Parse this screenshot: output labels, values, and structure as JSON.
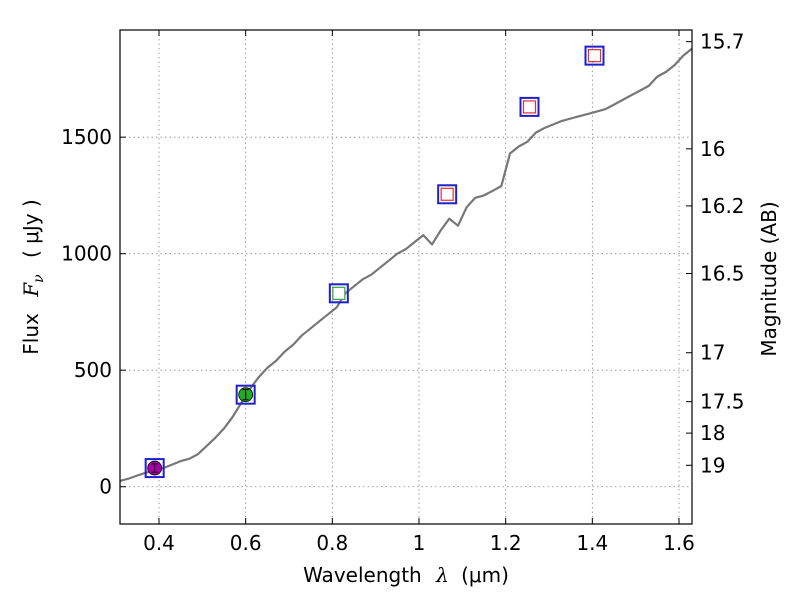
{
  "chart_data": {
    "type": "line",
    "title": "",
    "xlabel_text": "Wavelength",
    "xlabel_symbol": "λ",
    "xlabel_unit": "(μm)",
    "ylabel_text": "Flux",
    "ylabel_symbol": "F",
    "ylabel_subscript": "ν",
    "ylabel_unit": "( μJy )",
    "y2label": "Magnitude (AB)",
    "xlim": [
      0.31,
      1.63
    ],
    "ylim": [
      -160,
      1960
    ],
    "grid": true,
    "x_ticks": [
      0.4,
      0.6,
      0.8,
      1.0,
      1.2,
      1.4,
      1.6
    ],
    "x_tick_labels": [
      "0.4",
      "0.6",
      "0.8",
      "1",
      "1.2",
      "1.4",
      "1.6"
    ],
    "y_ticks": [
      0,
      500,
      1000,
      1500
    ],
    "y_tick_labels": [
      "0",
      "500",
      "1000",
      "1500"
    ],
    "magnitude_ticks": [
      {
        "label": "15.7",
        "flux": 1910
      },
      {
        "label": "16",
        "flux": 1450
      },
      {
        "label": "16.2",
        "flux": 1205
      },
      {
        "label": "16.5",
        "flux": 915
      },
      {
        "label": "17",
        "flux": 575
      },
      {
        "label": "17.5",
        "flux": 365
      },
      {
        "label": "18",
        "flux": 230
      },
      {
        "label": "19",
        "flux": 92
      }
    ],
    "series": [
      {
        "name": "spectrum",
        "color": "#777777",
        "x": [
          0.31,
          0.33,
          0.35,
          0.37,
          0.39,
          0.41,
          0.43,
          0.45,
          0.47,
          0.49,
          0.51,
          0.53,
          0.55,
          0.57,
          0.59,
          0.61,
          0.63,
          0.65,
          0.67,
          0.69,
          0.71,
          0.73,
          0.75,
          0.77,
          0.79,
          0.81,
          0.83,
          0.85,
          0.87,
          0.89,
          0.91,
          0.93,
          0.95,
          0.97,
          0.99,
          1.01,
          1.03,
          1.05,
          1.07,
          1.09,
          1.11,
          1.13,
          1.15,
          1.17,
          1.19,
          1.21,
          1.23,
          1.25,
          1.27,
          1.29,
          1.31,
          1.33,
          1.35,
          1.37,
          1.39,
          1.41,
          1.43,
          1.45,
          1.47,
          1.49,
          1.51,
          1.53,
          1.55,
          1.57,
          1.59,
          1.61,
          1.63
        ],
        "y": [
          25,
          35,
          48,
          60,
          70,
          80,
          95,
          110,
          120,
          140,
          175,
          210,
          250,
          300,
          360,
          420,
          470,
          510,
          540,
          580,
          610,
          650,
          680,
          710,
          740,
          770,
          830,
          860,
          890,
          910,
          940,
          970,
          1000,
          1020,
          1050,
          1080,
          1040,
          1100,
          1150,
          1120,
          1200,
          1240,
          1250,
          1270,
          1290,
          1430,
          1460,
          1480,
          1520,
          1540,
          1555,
          1570,
          1580,
          1590,
          1600,
          1610,
          1620,
          1640,
          1660,
          1680,
          1700,
          1720,
          1760,
          1780,
          1810,
          1850,
          1880
        ]
      }
    ],
    "photometry": [
      {
        "x": 0.39,
        "y": 80,
        "marker": "circle",
        "fill": "#aa00aa",
        "box_color": "#1f1fcc",
        "err": 18
      },
      {
        "x": 0.6,
        "y": 395,
        "marker": "circle",
        "fill": "#22aa22",
        "box_color": "#1f1fcc",
        "err": 22
      },
      {
        "x": 0.815,
        "y": 830,
        "marker": "square",
        "fill": "#ffffff",
        "inner_color": "#3ca03c",
        "box_color": "#1f1fcc"
      },
      {
        "x": 1.065,
        "y": 1255,
        "marker": "square",
        "fill": "#ffffff",
        "inner_color": "#dd3333",
        "box_color": "#1f1fcc"
      },
      {
        "x": 1.255,
        "y": 1630,
        "marker": "square",
        "fill": "#ffffff",
        "inner_color": "#dd3333",
        "box_color": "#1f1fcc"
      },
      {
        "x": 1.405,
        "y": 1850,
        "marker": "square",
        "fill": "#ffffff",
        "inner_color": "#dd3333",
        "box_color": "#1f1fcc"
      }
    ]
  }
}
